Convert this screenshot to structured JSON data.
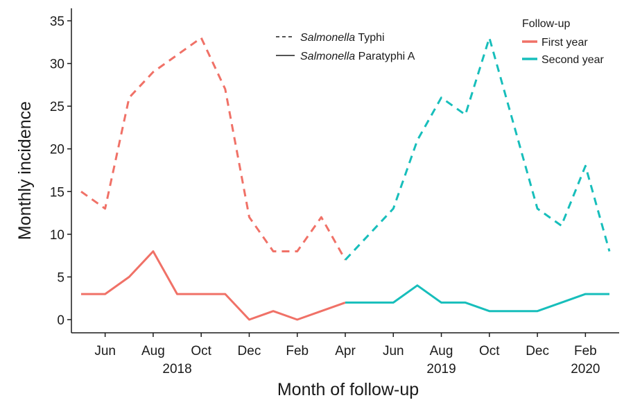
{
  "chart_data": {
    "type": "line",
    "xlabel": "Month of follow-up",
    "ylabel": "Monthly incidence",
    "ylim": [
      -1.5,
      36
    ],
    "y_ticks": [
      0,
      5,
      10,
      15,
      20,
      25,
      30,
      35
    ],
    "x_ticks": [
      {
        "date": "2018-06",
        "label": "Jun"
      },
      {
        "date": "2018-08",
        "label": "Aug"
      },
      {
        "date": "2018-10",
        "label": "Oct"
      },
      {
        "date": "2018-12",
        "label": "Dec"
      },
      {
        "date": "2019-02",
        "label": "Feb"
      },
      {
        "date": "2019-04",
        "label": "Apr"
      },
      {
        "date": "2019-06",
        "label": "Jun"
      },
      {
        "date": "2019-08",
        "label": "Aug"
      },
      {
        "date": "2019-10",
        "label": "Oct"
      },
      {
        "date": "2019-12",
        "label": "Dec"
      },
      {
        "date": "2020-02",
        "label": "Feb"
      }
    ],
    "year_labels": [
      {
        "date": "2018-09",
        "label": "2018"
      },
      {
        "date": "2019-08",
        "label": "2019"
      },
      {
        "date": "2020-02",
        "label": "2020"
      }
    ],
    "xlim": [
      "2018-05",
      "2020-03"
    ],
    "legend_pathogen": {
      "entries": [
        {
          "italic": "Salmonella",
          "rest": " Typhi",
          "style": "dashed"
        },
        {
          "italic": "Salmonella",
          "rest": " Paratyphi A",
          "style": "solid"
        }
      ]
    },
    "legend_followup": {
      "title": "Follow-up",
      "entries": [
        {
          "label": "First year",
          "color": "#F07167"
        },
        {
          "label": "Second year",
          "color": "#17BEBB"
        }
      ]
    },
    "series": [
      {
        "pathogen": "Salmonella Typhi",
        "followup": "First year",
        "style": "dashed",
        "color": "#F07167",
        "x": [
          "2018-05",
          "2018-06",
          "2018-07",
          "2018-08",
          "2018-09",
          "2018-10",
          "2018-11",
          "2018-12",
          "2019-01",
          "2019-02",
          "2019-03",
          "2019-04"
        ],
        "y": [
          15,
          13,
          26,
          29,
          31,
          33,
          27,
          12,
          8,
          8,
          12,
          7
        ]
      },
      {
        "pathogen": "Salmonella Typhi",
        "followup": "Second year",
        "style": "dashed",
        "color": "#17BEBB",
        "x": [
          "2019-04",
          "2019-05",
          "2019-06",
          "2019-07",
          "2019-08",
          "2019-09",
          "2019-10",
          "2019-11",
          "2019-12",
          "2020-01",
          "2020-02",
          "2020-03"
        ],
        "y": [
          7,
          10,
          13,
          21,
          26,
          24,
          33,
          23,
          13,
          11,
          18,
          8
        ]
      },
      {
        "pathogen": "Salmonella Paratyphi A",
        "followup": "First year",
        "style": "solid",
        "color": "#F07167",
        "x": [
          "2018-05",
          "2018-06",
          "2018-07",
          "2018-08",
          "2018-09",
          "2018-10",
          "2018-11",
          "2018-12",
          "2019-01",
          "2019-02",
          "2019-03",
          "2019-04"
        ],
        "y": [
          3,
          3,
          5,
          8,
          3,
          3,
          3,
          0,
          1,
          0,
          1,
          2
        ]
      },
      {
        "pathogen": "Salmonella Paratyphi A",
        "followup": "Second year",
        "style": "solid",
        "color": "#17BEBB",
        "x": [
          "2019-04",
          "2019-05",
          "2019-06",
          "2019-07",
          "2019-08",
          "2019-09",
          "2019-10",
          "2019-11",
          "2019-12",
          "2020-01",
          "2020-02",
          "2020-03"
        ],
        "y": [
          2,
          2,
          2,
          4,
          2,
          2,
          1,
          1,
          1,
          2,
          3,
          3
        ]
      }
    ]
  }
}
